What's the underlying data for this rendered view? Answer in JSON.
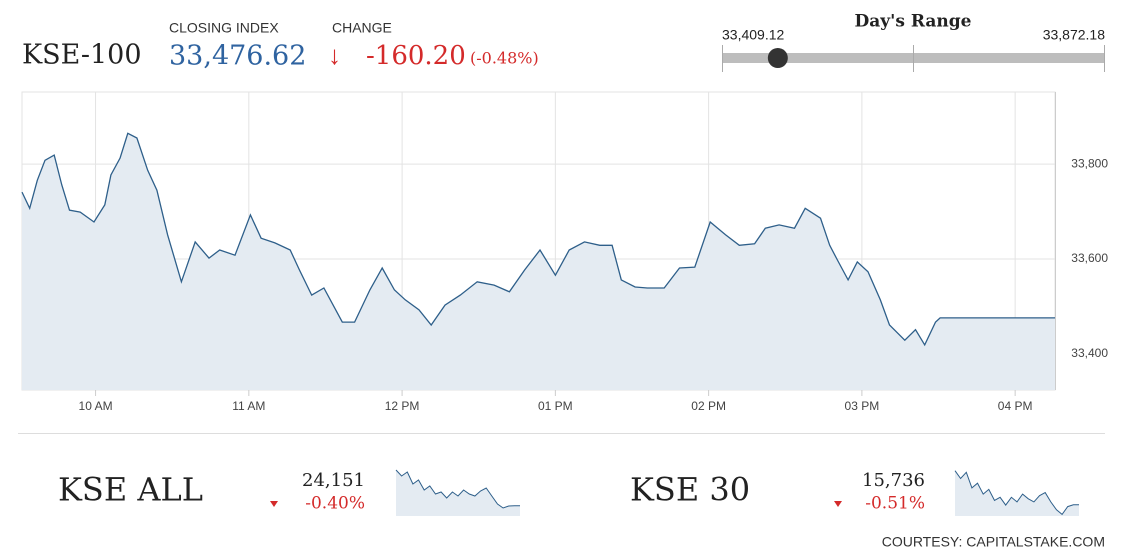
{
  "header": {
    "symbol": "KSE-100",
    "closing_label": "CLOSING INDEX",
    "closing": {
      "value": 33476.62,
      "label": "33,476.62"
    },
    "change_label": "CHANGE",
    "change": "-160.20",
    "change_pct": "(-0.48%)"
  },
  "range": {
    "title": "Day's Range",
    "low": {
      "value": 33409.12,
      "label": "33,409.12"
    },
    "high": {
      "value": 33872.18,
      "label": "33,872.18"
    }
  },
  "chart_data": {
    "type": "line",
    "color": "#2e5f8a",
    "fill": "#e4ebf2",
    "x": [
      9.52,
      9.57,
      9.62,
      9.67,
      9.73,
      9.78,
      9.83,
      9.9,
      9.99,
      10.06,
      10.1,
      10.16,
      10.21,
      10.27,
      10.34,
      10.4,
      10.47,
      10.56,
      10.65,
      10.74,
      10.81,
      10.91,
      11.01,
      11.08,
      11.17,
      11.27,
      11.33,
      11.41,
      11.49,
      11.61,
      11.69,
      11.79,
      11.87,
      11.95,
      12.02,
      12.11,
      12.19,
      12.28,
      12.38,
      12.49,
      12.6,
      12.7,
      12.8,
      12.9,
      13.0,
      13.09,
      13.19,
      13.29,
      13.37,
      13.43,
      13.52,
      13.6,
      13.71,
      13.81,
      13.91,
      14.01,
      14.11,
      14.2,
      14.3,
      14.37,
      14.46,
      14.56,
      14.63,
      14.73,
      14.79,
      14.84,
      14.91,
      14.97,
      15.04,
      15.12,
      15.18,
      15.28,
      15.35,
      15.41,
      15.48,
      15.51,
      16.26
    ],
    "values": [
      33741,
      33707,
      33766,
      33808,
      33819,
      33756,
      33703,
      33699,
      33678,
      33714,
      33777,
      33813,
      33865,
      33855,
      33787,
      33745,
      33651,
      33552,
      33636,
      33602,
      33619,
      33608,
      33693,
      33644,
      33634,
      33619,
      33577,
      33524,
      33539,
      33467,
      33467,
      33535,
      33581,
      33535,
      33514,
      33493,
      33461,
      33503,
      33524,
      33552,
      33545,
      33531,
      33577,
      33619,
      33566,
      33619,
      33636,
      33629,
      33629,
      33556,
      33541,
      33539,
      33539,
      33581,
      33583,
      33678,
      33651,
      33629,
      33632,
      33665,
      33672,
      33665,
      33707,
      33686,
      33629,
      33598,
      33556,
      33594,
      33573,
      33514,
      33461,
      33429,
      33451,
      33419,
      33467,
      33476,
      33476
    ],
    "xlim": [
      9.52,
      16.26
    ],
    "xticks": [
      {
        "value": 10,
        "label": "10 AM"
      },
      {
        "value": 11,
        "label": "11 AM"
      },
      {
        "value": 12,
        "label": "12 PM"
      },
      {
        "value": 13,
        "label": "01 PM"
      },
      {
        "value": 14,
        "label": "02 PM"
      },
      {
        "value": 15,
        "label": "03 PM"
      },
      {
        "value": 16,
        "label": "04 PM"
      }
    ],
    "ylim": [
      33324,
      33952
    ],
    "yticks": [
      {
        "value": 33400,
        "label": "33,400"
      },
      {
        "value": 33600,
        "label": "33,600"
      },
      {
        "value": 33800,
        "label": "33,800"
      }
    ],
    "grid": true
  },
  "indices": [
    {
      "name": "KSE ALL",
      "value": "24,151",
      "change_pct": "-0.40%",
      "ylim": [
        24100,
        24350
      ],
      "values": [
        24330,
        24300,
        24320,
        24260,
        24280,
        24230,
        24250,
        24210,
        24220,
        24190,
        24220,
        24200,
        24230,
        24210,
        24200,
        24225,
        24240,
        24200,
        24160,
        24140,
        24150,
        24151,
        24151
      ]
    },
    {
      "name": "KSE 30",
      "value": "15,736",
      "change_pct": "-0.51%",
      "ylim": [
        15700,
        15860
      ],
      "values": [
        15845,
        15820,
        15840,
        15790,
        15805,
        15770,
        15785,
        15750,
        15760,
        15735,
        15760,
        15745,
        15770,
        15755,
        15745,
        15765,
        15775,
        15745,
        15720,
        15705,
        15730,
        15736,
        15736
      ]
    }
  ],
  "footer": "COURTESY: CAPITALSTAKE.COM"
}
